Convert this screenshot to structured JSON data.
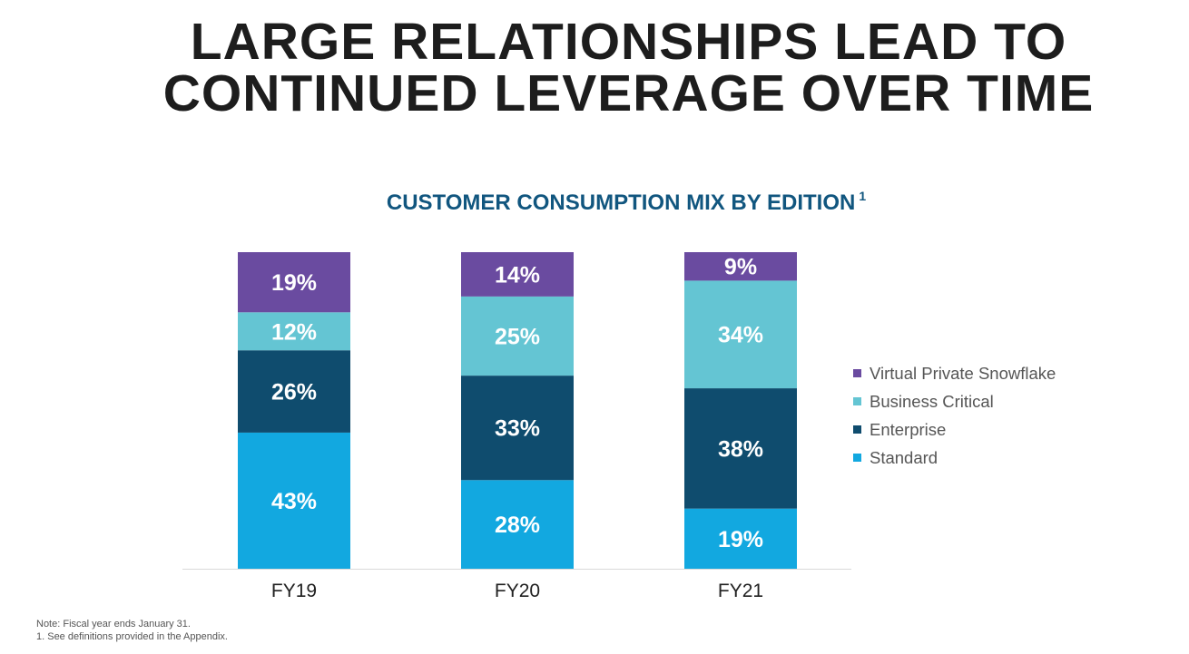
{
  "title": {
    "line1": "LARGE RELATIONSHIPS LEAD TO",
    "line2": "CONTINUED LEVERAGE OVER TIME"
  },
  "chart_data": {
    "type": "bar",
    "stacked": true,
    "title": "CUSTOMER CONSUMPTION MIX BY EDITION",
    "title_footnote": "1",
    "categories": [
      "FY19",
      "FY20",
      "FY21"
    ],
    "series": [
      {
        "name": "Standard",
        "values": [
          43,
          28,
          19
        ],
        "labels": [
          "43%",
          "28%",
          "19%"
        ],
        "color": "#12a8e0"
      },
      {
        "name": "Enterprise",
        "values": [
          26,
          33,
          38
        ],
        "labels": [
          "26%",
          "33%",
          "38%"
        ],
        "color": "#0f4c6e"
      },
      {
        "name": "Business Critical",
        "values": [
          12,
          25,
          34
        ],
        "labels": [
          "12%",
          "25%",
          "34%"
        ],
        "color": "#64c5d3"
      },
      {
        "name": "Virtual Private Snowflake",
        "values": [
          19,
          14,
          9
        ],
        "labels": [
          "19%",
          "14%",
          "9%"
        ],
        "color": "#6a4ba0"
      }
    ],
    "ylim": [
      0,
      100
    ],
    "grid": false,
    "legend_position": "right",
    "legend_order": [
      "Virtual Private Snowflake",
      "Business Critical",
      "Enterprise",
      "Standard"
    ]
  },
  "notes": {
    "line1": "Note:  Fiscal year ends January 31.",
    "line2": "1. See definitions provided in the Appendix."
  }
}
